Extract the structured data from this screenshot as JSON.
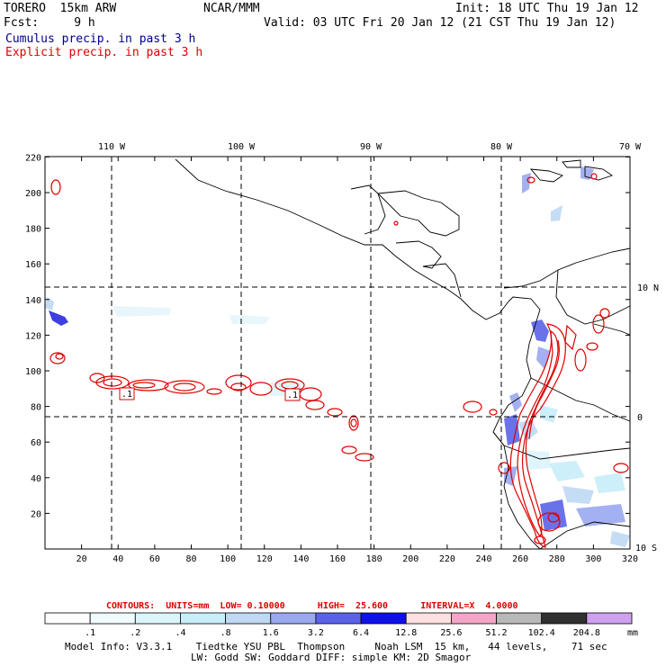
{
  "header": {
    "model": "TORERO  15km ARW",
    "center": "NCAR/MMM",
    "init": "Init: 18 UTC Thu 19 Jan 12",
    "fcst": "Fcst:     9 h",
    "valid": "Valid: 03 UTC Fri 20 Jan 12 (21 CST Thu 19 Jan 12)",
    "cumulus_label": "Cumulus precip. in past 3 h",
    "explicit_label": "Explicit precip. in past 3 h"
  },
  "colors": {
    "cumulus": "#00008b",
    "explicit": "#e00000",
    "contour": "#e00000",
    "grid": "#000000"
  },
  "map": {
    "lon_labels": [
      "110 W",
      "100 W",
      "90 W",
      "80 W",
      "70 W"
    ],
    "lat_labels": [
      "10 N",
      "0",
      "10 S"
    ],
    "x_ticks": [
      "20",
      "40",
      "60",
      "80",
      "100",
      "120",
      "140",
      "160",
      "180",
      "200",
      "220",
      "240",
      "260",
      "280",
      "300",
      "320"
    ],
    "y_ticks": [
      "220",
      "200",
      "180",
      "160",
      "140",
      "120",
      "100",
      "80",
      "60",
      "40",
      "20"
    ],
    "contour_box_labels": [
      ".1",
      ".1"
    ]
  },
  "contours": {
    "line": "CONTOURS:  UNITS=mm  LOW= 0.10000      HIGH=  25.600      INTERVAL=X  4.0000"
  },
  "colorbar": {
    "labels": [
      ".1",
      ".2",
      ".4",
      ".8",
      "1.6",
      "3.2",
      "6.4",
      "12.8",
      "25.6",
      "51.2",
      "102.4",
      "204.8"
    ],
    "unit": "mm",
    "colors": [
      "#ffffff",
      "#f0fbff",
      "#dcf5fb",
      "#c8eefa",
      "#bfd9f5",
      "#9aa8f0",
      "#5a63e8",
      "#1010e8",
      "#fde0e0",
      "#f5a6c8",
      "#b8b8b8",
      "#303030",
      "#cfa0f0"
    ]
  },
  "footer": {
    "line1": "Model Info: V3.3.1    Tiedtke YSU PBL  Thompson     Noah LSM  15 km,   44 levels,    71 sec",
    "line2": "LW: Godd SW: Goddard DIFF: simple KM: 2D Smagor"
  }
}
